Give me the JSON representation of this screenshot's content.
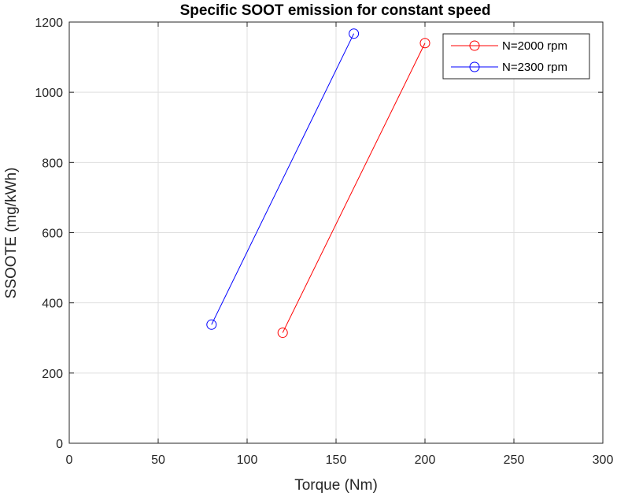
{
  "chart_data": {
    "type": "line",
    "title": "Specific SOOT emission for constant speed",
    "xlabel": "Torque (Nm)",
    "ylabel": "SSOOTE (mg/kWh)",
    "xlim": [
      0,
      300
    ],
    "ylim": [
      0,
      1200
    ],
    "xticks": [
      "0",
      "50",
      "100",
      "150",
      "200",
      "250",
      "300"
    ],
    "yticks": [
      "0",
      "200",
      "400",
      "600",
      "800",
      "1000",
      "1200"
    ],
    "grid": true,
    "legend_position": "top-right",
    "marker": "circle",
    "series": [
      {
        "name": "N=2000 rpm",
        "color": "#ff0000",
        "x": [
          120,
          200
        ],
        "y": [
          315,
          1140
        ]
      },
      {
        "name": "N=2300 rpm",
        "color": "#0000ff",
        "x": [
          80,
          160
        ],
        "y": [
          338,
          1167
        ]
      }
    ]
  }
}
